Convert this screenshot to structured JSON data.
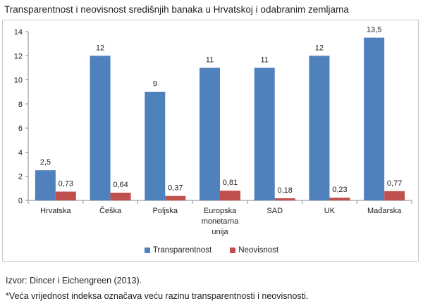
{
  "title": "Transparentnost i neovisnost središnjih banaka u Hrvatskoj i odabranim zemljama",
  "chart_data": {
    "type": "bar",
    "categories": [
      [
        "Hrvatska"
      ],
      [
        "Češka"
      ],
      [
        "Poljska"
      ],
      [
        "Europska",
        "monetarna",
        "unija"
      ],
      [
        "SAD"
      ],
      [
        "UK"
      ],
      [
        "Mađarska"
      ]
    ],
    "series": [
      {
        "name": "Transparentnost",
        "color": "#4f81bd",
        "values": [
          2.5,
          12,
          9,
          11,
          11,
          12,
          13.5
        ],
        "labels": [
          "2,5",
          "12",
          "9",
          "11",
          "11",
          "12",
          "13,5"
        ]
      },
      {
        "name": "Neovisnost",
        "color": "#c0504d",
        "values": [
          0.73,
          0.64,
          0.37,
          0.81,
          0.18,
          0.23,
          0.77
        ],
        "labels": [
          "0,73",
          "0,64",
          "0,37",
          "0,81",
          "0,18",
          "0,23",
          "0,77"
        ]
      }
    ],
    "ylim": [
      0,
      14
    ],
    "yticks": [
      0,
      2,
      4,
      6,
      8,
      10,
      12,
      14
    ],
    "grid": false,
    "legend": "bottom"
  },
  "source": "Izvor: Dincer i Eichengreen (2013).",
  "footnote": "*Veća vrijednost indeksa označava veću razinu transparentnosti i neovisnosti."
}
